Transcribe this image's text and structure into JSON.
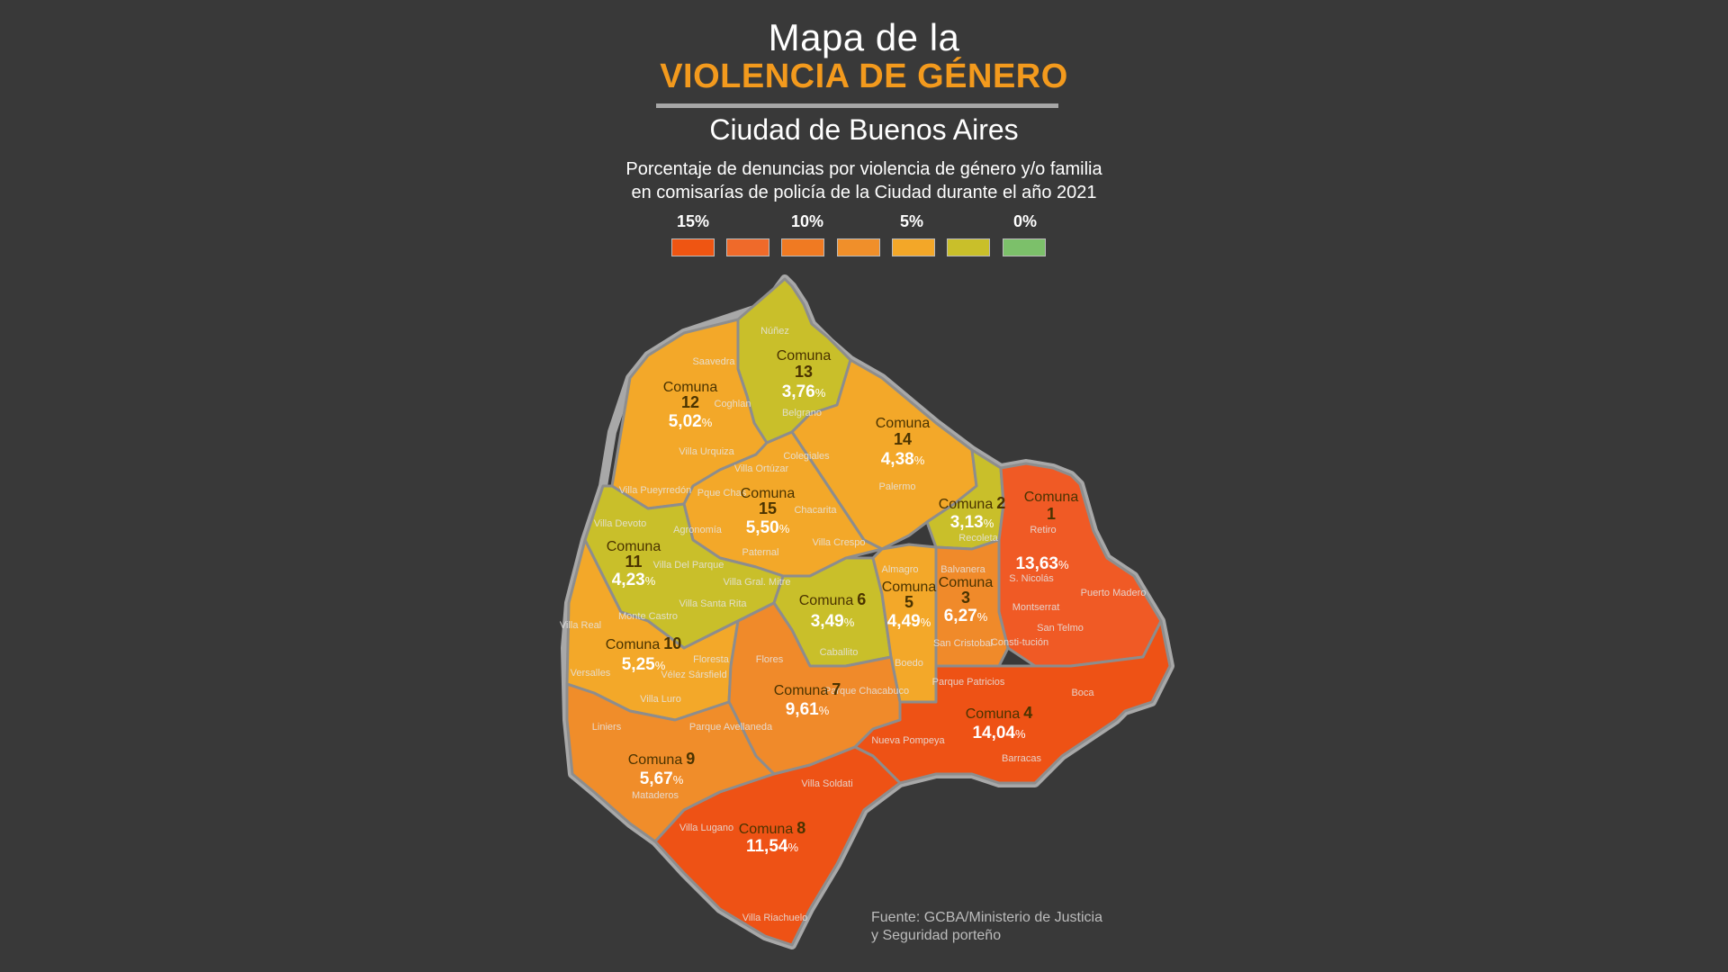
{
  "title": {
    "line1": "Mapa de la",
    "line2": "VIOLENCIA DE GÉNERO"
  },
  "subtitle": "Ciudad de Buenos Aires",
  "description": {
    "line1": "Porcentaje de denuncias por violencia de género y/o familia",
    "line2": "en comisarías de policía de la Ciudad durante el año 2021"
  },
  "legend": {
    "labels": [
      "15%",
      "10%",
      "5%",
      "0%"
    ],
    "colors": [
      "#ef5512",
      "#ef6a2a",
      "#f07a22",
      "#f08f2a",
      "#f3a728",
      "#c9bf2a",
      "#7cc06a"
    ]
  },
  "source": {
    "line1": "Fuente: GCBA/Ministerio de Justicia",
    "line2": "y Seguridad porteño"
  },
  "colors": {
    "background": "#393939",
    "accent": "#f39a1d",
    "border": "#8d8d8d"
  },
  "comunas": [
    {
      "word": "Comuna",
      "num": "1",
      "value": "",
      "pct": "",
      "fill": "#f05a25"
    },
    {
      "word": "Comuna",
      "num": "2",
      "value": "3,13",
      "pct": "%",
      "fill": "#c9bf2a"
    },
    {
      "word": "Comuna",
      "num": "3",
      "value": "6,27",
      "pct": "%",
      "fill": "#f08a2a"
    },
    {
      "word": "Comuna",
      "num": "4",
      "value": "14,04",
      "pct": "%",
      "fill": "#ee5215"
    },
    {
      "word": "Comuna",
      "num": "5",
      "value": "4,49",
      "pct": "%",
      "fill": "#f3a829"
    },
    {
      "word": "Comuna",
      "num": "6",
      "value": "3,49",
      "pct": "%",
      "fill": "#c9bf2a"
    },
    {
      "word": "Comuna",
      "num": "7",
      "value": "9,61",
      "pct": "%",
      "fill": "#f08a2a"
    },
    {
      "word": "Comuna",
      "num": "8",
      "value": "11,54",
      "pct": "%",
      "fill": "#ee5215"
    },
    {
      "word": "Comuna",
      "num": "9",
      "value": "5,67",
      "pct": "%",
      "fill": "#f08d2a"
    },
    {
      "word": "Comuna",
      "num": "10",
      "value": "5,25",
      "pct": "%",
      "fill": "#f3a829"
    },
    {
      "word": "Comuna",
      "num": "11",
      "value": "4,23",
      "pct": "%",
      "fill": "#c9bf2a"
    },
    {
      "word": "Comuna",
      "num": "12",
      "value": "5,02",
      "pct": "%",
      "fill": "#f3a829"
    },
    {
      "word": "Comuna",
      "num": "13",
      "value": "3,76",
      "pct": "%",
      "fill": "#c9bf2a"
    },
    {
      "word": "Comuna",
      "num": "14",
      "value": "4,38",
      "pct": "%",
      "fill": "#f3a829"
    },
    {
      "word": "Comuna",
      "num": "15",
      "value": "5,50",
      "pct": "%",
      "fill": "#f3a829"
    }
  ],
  "comuna1_value": {
    "value": "13,63",
    "pct": "%"
  },
  "barrios": [
    "Núñez",
    "Saavedra",
    "Coghlan",
    "Belgrano",
    "Villa Urquiza",
    "Colegiales",
    "Villa Pueyrredón",
    "Villa Ortúzar",
    "Pque Chas",
    "Chacarita",
    "Agronomía",
    "Paternal",
    "Villa Crespo",
    "Palermo",
    "Recoleta",
    "Retiro",
    "S. Nicolás",
    "Puerto Madero",
    "Villa Devoto",
    "Villa Del Parque",
    "Villa Gral. Mitre",
    "Villa Santa Rita",
    "Almagro",
    "Balvanera",
    "Montserrat",
    "Caballito",
    "Monte Castro",
    "Villa Real",
    "Versalles",
    "Floresta",
    "Vélez Sársfield",
    "Flores",
    "Boedo",
    "San Cristobal",
    "Consti-tución",
    "San Telmo",
    "Villa Luro",
    "Parque Chacabuco",
    "Parque Patricios",
    "Boca",
    "Liniers",
    "Parque Avellaneda",
    "Nueva Pompeya",
    "Barracas",
    "Mataderos",
    "Villa Soldati",
    "Villa Lugano",
    "Villa Riachuelo"
  ]
}
